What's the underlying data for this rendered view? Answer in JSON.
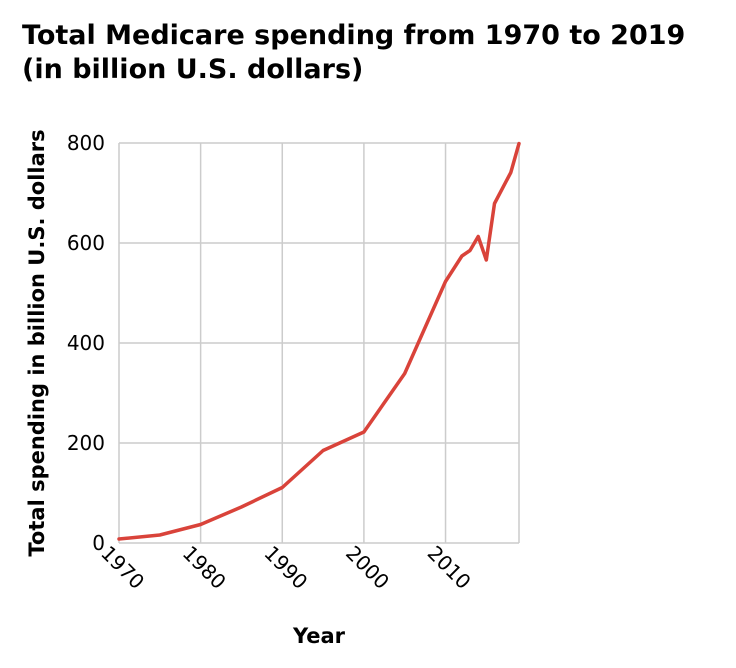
{
  "chart_data": {
    "type": "line",
    "title_line1": "Total Medicare spending from 1970 to 2019",
    "title_line2": "(in billion U.S. dollars)",
    "xlabel": "Year",
    "ylabel": "Total spending in billion U.S. dollars",
    "xlim": [
      1970,
      2019
    ],
    "ylim": [
      0,
      800
    ],
    "x_ticks": [
      1970,
      1980,
      1990,
      2000,
      2010
    ],
    "y_ticks": [
      0,
      200,
      400,
      600,
      800
    ],
    "grid": true,
    "colors": {
      "line": "#d9433a"
    },
    "series": [
      {
        "x": [
          1970,
          1975,
          1980,
          1985,
          1990,
          1995,
          2000,
          2005,
          2010,
          2012,
          2013,
          2014,
          2015,
          2016,
          2018,
          2019
        ],
        "values": [
          8,
          16,
          37,
          72,
          111,
          185,
          222,
          339,
          523,
          574,
          585,
          613,
          566,
          679,
          741,
          799
        ]
      }
    ]
  }
}
